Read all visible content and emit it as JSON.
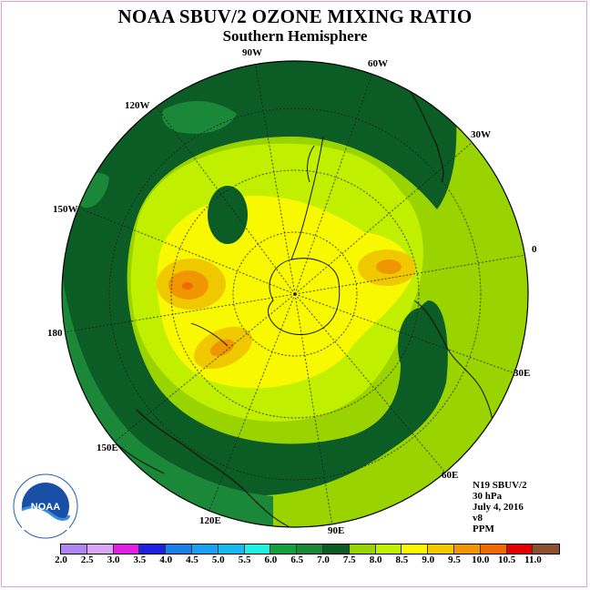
{
  "title": "NOAA SBUV/2 OZONE MIXING RATIO",
  "subtitle": "Southern Hemisphere",
  "longitude_labels": [
    "90W",
    "60W",
    "30W",
    "0",
    "30E",
    "60E",
    "90E",
    "120E",
    "150E",
    "180",
    "150W",
    "120W"
  ],
  "info": {
    "satellite": "N19 SBUV/2",
    "level": "30 hPa",
    "date": "July 4, 2016",
    "version": "v8",
    "units": "PPM"
  },
  "logo": {
    "text": "NOAA",
    "ring_text": "NATIONAL OCEANIC AND ATMOSPHERIC ADMINISTRATION · U.S. DEPARTMENT OF COMMERCE"
  },
  "colorbar": {
    "ticks": [
      "2.0",
      "2.5",
      "3.0",
      "3.5",
      "4.0",
      "4.5",
      "5.0",
      "5.5",
      "6.0",
      "6.5",
      "7.0",
      "7.5",
      "8.0",
      "8.5",
      "9.0",
      "9.5",
      "10.0",
      "10.5",
      "11.0"
    ],
    "colors": [
      "#b085f0",
      "#d8a6f0",
      "#e020e0",
      "#2020e0",
      "#1a7fe8",
      "#1aa0f0",
      "#18b8f0",
      "#20f0e0",
      "#13a040",
      "#1a8838",
      "#0c5c26",
      "#9ad400",
      "#c0f000",
      "#f8f800",
      "#f0c800",
      "#f09600",
      "#f06a00",
      "#e00000",
      "#8a5030"
    ]
  },
  "map_colors": {
    "c65": "#1a8838",
    "c70": "#0c5c26",
    "c75": "#9ad400",
    "c80": "#c0f000",
    "c85": "#f8f800",
    "c90": "#f0c800",
    "c95": "#f09600",
    "c100": "#f06a00"
  }
}
